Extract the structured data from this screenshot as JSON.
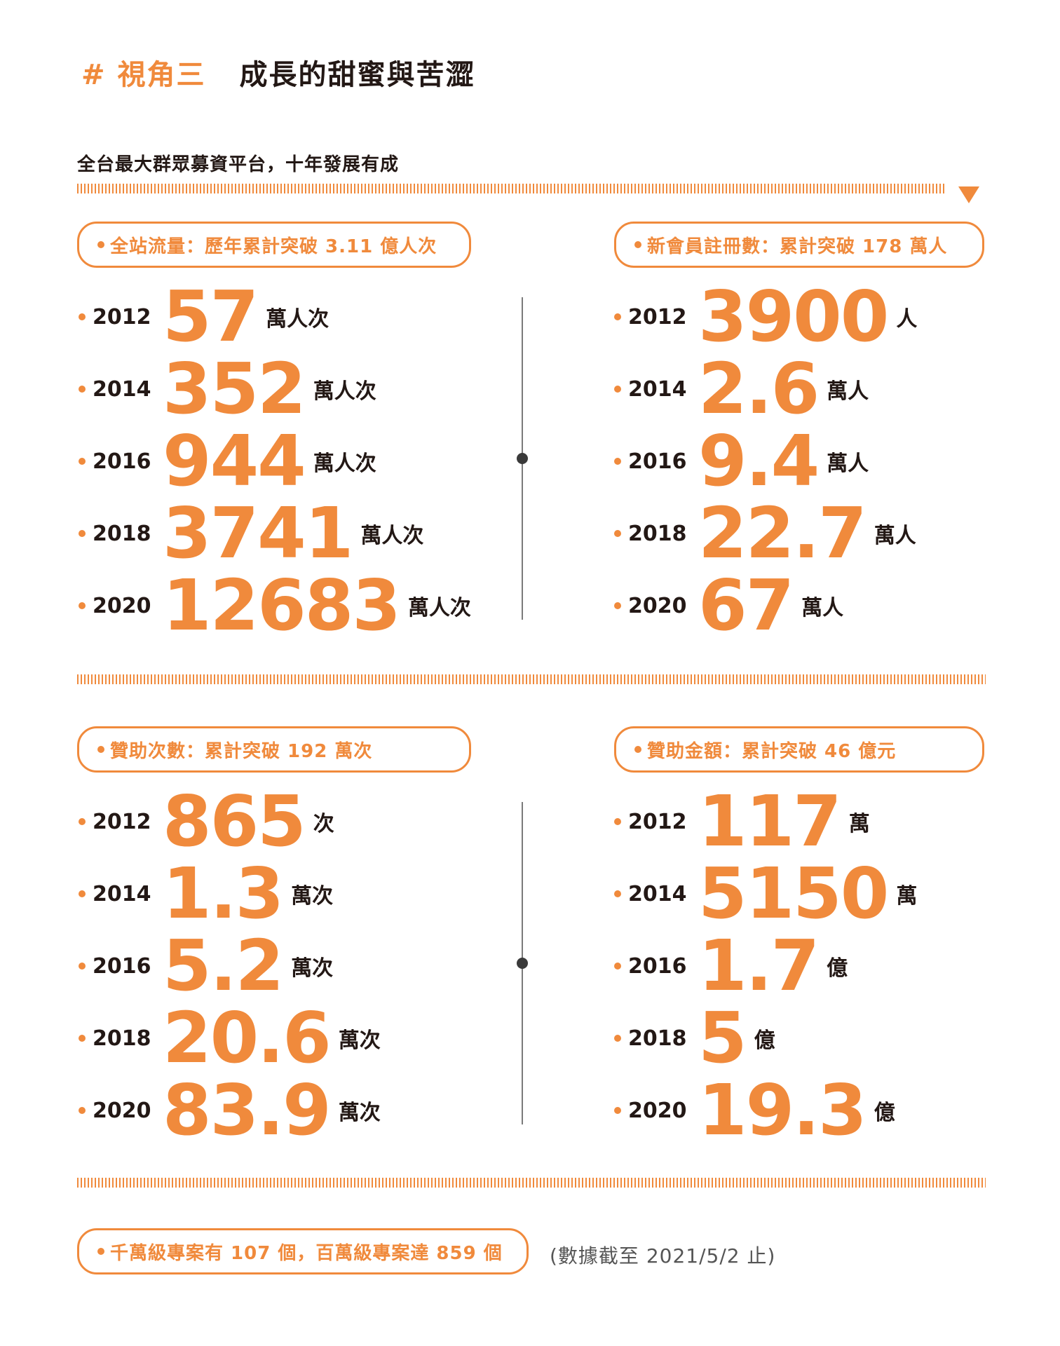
{
  "header": {
    "tag": "# 視角三",
    "title": "成長的甜蜜與苦澀"
  },
  "subtitle": "全台最大群眾募資平台，十年發展有成",
  "colors": {
    "accent": "#f08a3c",
    "text": "#231815"
  },
  "panels": [
    {
      "label": "全站流量：歷年累計突破 3.11 億人次",
      "rows": [
        {
          "year": "2012",
          "value": "57",
          "unit": "萬人次"
        },
        {
          "year": "2014",
          "value": "352",
          "unit": "萬人次"
        },
        {
          "year": "2016",
          "value": "944",
          "unit": "萬人次"
        },
        {
          "year": "2018",
          "value": "3741",
          "unit": "萬人次"
        },
        {
          "year": "2020",
          "value": "12683",
          "unit": "萬人次"
        }
      ]
    },
    {
      "label": "新會員註冊數：累計突破 178 萬人",
      "rows": [
        {
          "year": "2012",
          "value": "3900",
          "unit": "人"
        },
        {
          "year": "2014",
          "value": "2.6",
          "unit": "萬人"
        },
        {
          "year": "2016",
          "value": "9.4",
          "unit": "萬人"
        },
        {
          "year": "2018",
          "value": "22.7",
          "unit": "萬人"
        },
        {
          "year": "2020",
          "value": "67",
          "unit": "萬人"
        }
      ]
    },
    {
      "label": "贊助次數：累計突破 192 萬次",
      "rows": [
        {
          "year": "2012",
          "value": "865",
          "unit": "次"
        },
        {
          "year": "2014",
          "value": "1.3",
          "unit": "萬次"
        },
        {
          "year": "2016",
          "value": "5.2",
          "unit": "萬次"
        },
        {
          "year": "2018",
          "value": "20.6",
          "unit": "萬次"
        },
        {
          "year": "2020",
          "value": "83.9",
          "unit": "萬次"
        }
      ]
    },
    {
      "label": "贊助金額：累計突破 46 億元",
      "rows": [
        {
          "year": "2012",
          "value": "117",
          "unit": "萬"
        },
        {
          "year": "2014",
          "value": "5150",
          "unit": "萬"
        },
        {
          "year": "2016",
          "value": "1.7",
          "unit": "億"
        },
        {
          "year": "2018",
          "value": "5",
          "unit": "億"
        },
        {
          "year": "2020",
          "value": "19.3",
          "unit": "億"
        }
      ]
    }
  ],
  "footer": {
    "label": "千萬級專案有 107 個，百萬級專案達 859 個",
    "note": "(數據截至 2021/5/2 止)"
  }
}
